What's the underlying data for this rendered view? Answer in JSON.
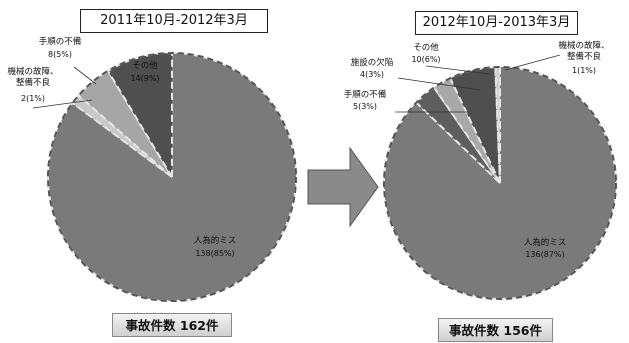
{
  "chart_data": [
    {
      "type": "pie",
      "title": "2011年10月-2012年3月",
      "total_label": "事故件数 162件",
      "slices": [
        {
          "label": "人為的ミス",
          "value": 138,
          "value_label": "138(85%)",
          "color": "#7a7a7a"
        },
        {
          "label": "機械の故障、\n整備不良",
          "value": 2,
          "value_label": "2(1%)",
          "color": "#c8c8c8"
        },
        {
          "label": "手順の不備",
          "value": 8,
          "value_label": "8(5%)",
          "color": "#a6a6a6"
        },
        {
          "label": "その他",
          "value": 14,
          "value_label": "14(9%)",
          "color": "#4f4f4f"
        }
      ]
    },
    {
      "type": "pie",
      "title": "2012年10月-2013年3月",
      "total_label": "事故件数 156件",
      "slices": [
        {
          "label": "人為的ミス",
          "value": 136,
          "value_label": "136(87%)",
          "color": "#7a7a7a"
        },
        {
          "label": "手順の不備",
          "value": 5,
          "value_label": "5(3%)",
          "color": "#5e5e5e"
        },
        {
          "label": "施設の欠陥",
          "value": 4,
          "value_label": "4(3%)",
          "color": "#a8a8a8"
        },
        {
          "label": "その他",
          "value": 10,
          "value_label": "10(6%)",
          "color": "#4f4f4f"
        },
        {
          "label": "機械の故障、\n整備不良",
          "value": 1,
          "value_label": "1(1%)",
          "color": "#cfcfcf"
        }
      ]
    }
  ]
}
